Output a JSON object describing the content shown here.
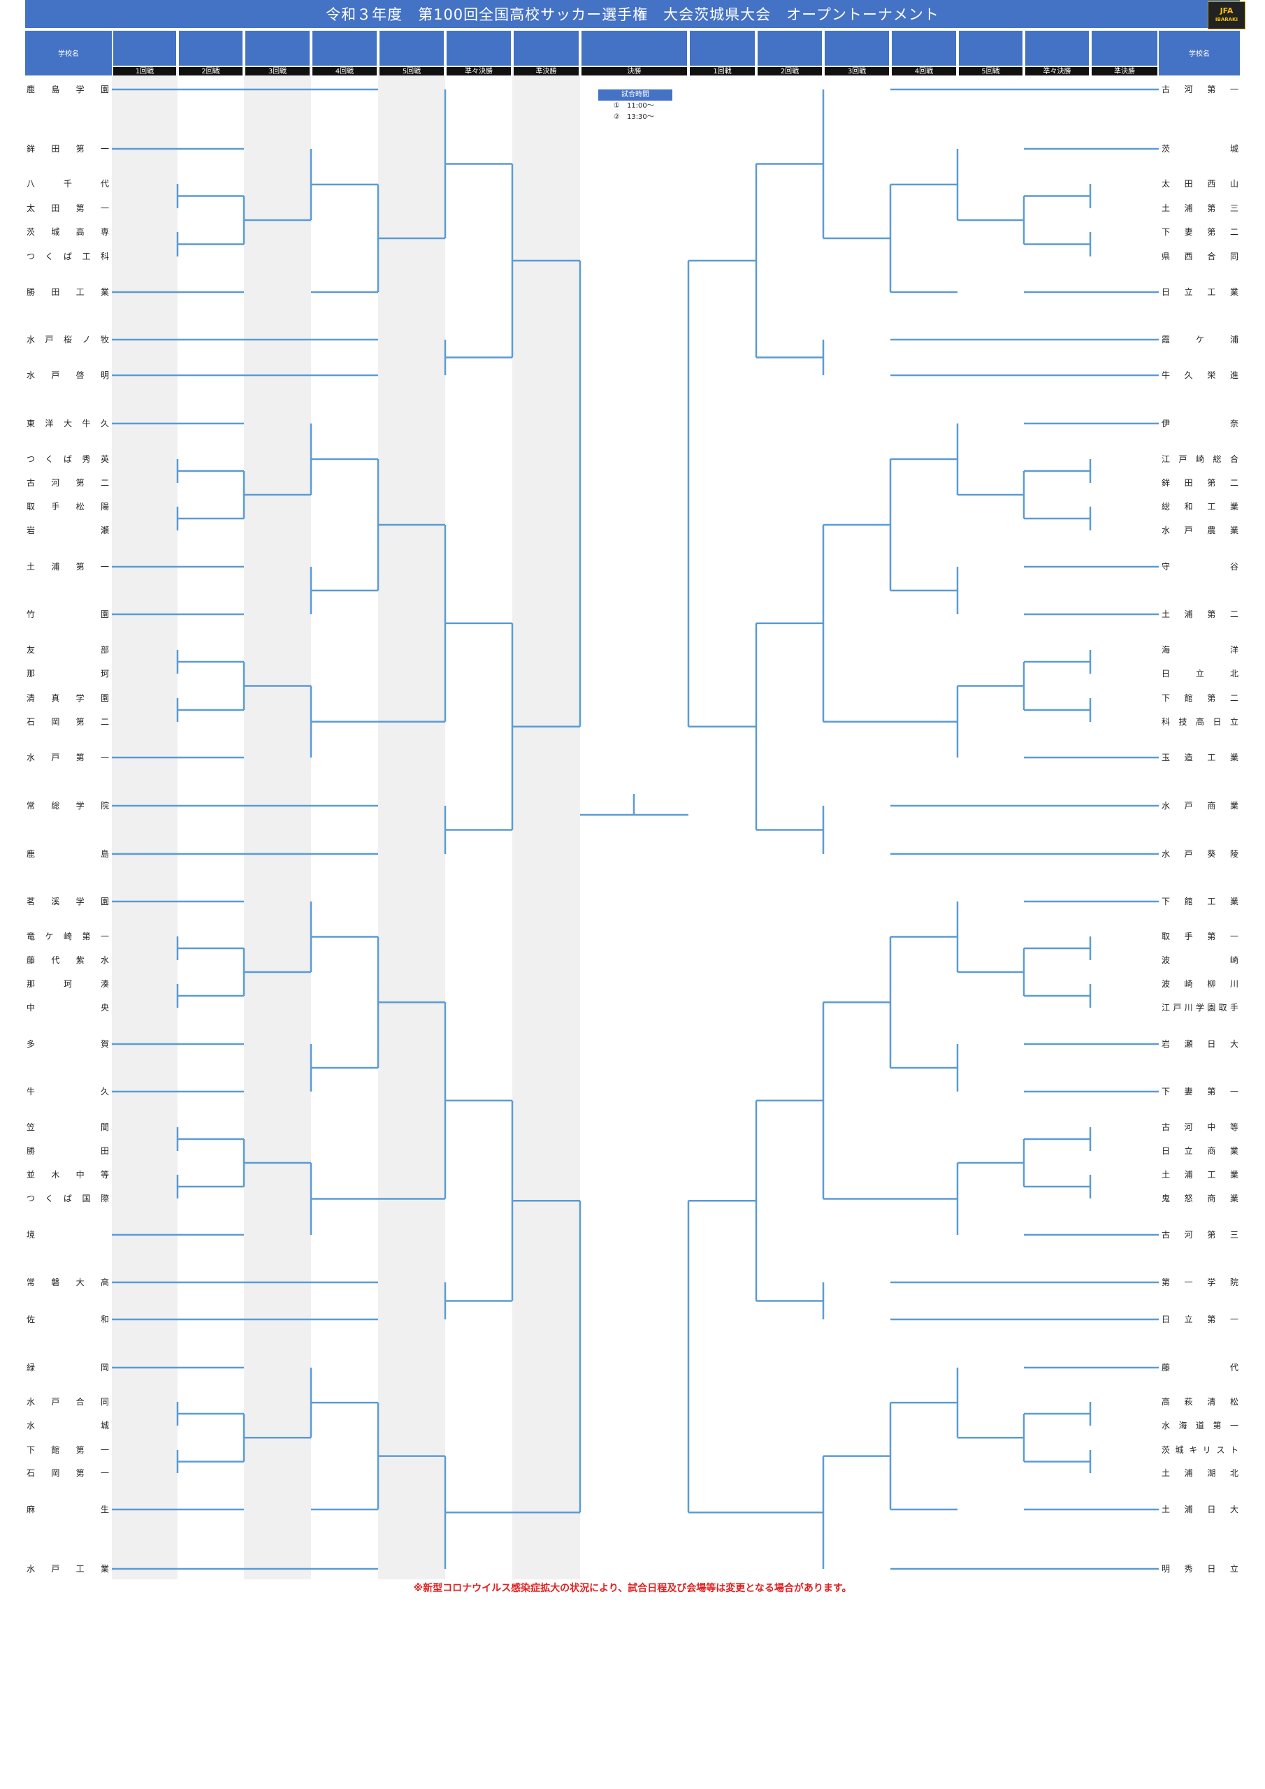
{
  "title": "令和３年度　第100回全国高校サッカー選手権　大会茨城県大会　オープントーナメント",
  "logo": {
    "text": "JFA",
    "sub": "IBARAKI"
  },
  "header": {
    "school_label": "学校名",
    "rounds_left": [
      "1回戦",
      "2回戦",
      "3回戦",
      "4回戦",
      "5回戦",
      "準々決勝",
      "準決勝"
    ],
    "final": "決勝",
    "rounds_right": [
      "準決勝",
      "準々決勝",
      "5回戦",
      "4回戦",
      "3回戦",
      "2回戦",
      "1回戦"
    ]
  },
  "match_times": {
    "label": "試合時間",
    "times": [
      "①　11:00～",
      "②　13:30～"
    ]
  },
  "colors": {
    "header": "#4472c4",
    "line": "#5b9bd5",
    "shade": "#f0f0f0",
    "note": "#e02020"
  },
  "left_schools": [
    "鹿島学園",
    "鉾田第一",
    "八千代",
    "太田第一",
    "茨城高専",
    "つくば工科",
    "勝田工業",
    "水戸桜ノ牧",
    "水戸啓明",
    "東洋大牛久",
    "つくば秀英",
    "古河第二",
    "取手松陽",
    "岩瀬",
    "土浦第一",
    "竹園",
    "友部",
    "那珂",
    "清真学園",
    "石岡第二",
    "水戸第一",
    "常総学院",
    "鹿島",
    "茗溪学園",
    "竜ケ崎第一",
    "藤代紫水",
    "那珂湊",
    "中央",
    "多賀",
    "牛久",
    "笠間",
    "勝田",
    "並木中等",
    "つくば国際",
    "境",
    "常磐大高",
    "佐和",
    "緑岡",
    "水戸合同",
    "水城",
    "下館第一",
    "石岡第一",
    "麻生",
    "水戸工業"
  ],
  "right_schools": [
    "古河第一",
    "茨城",
    "太田西山",
    "土浦第三",
    "下妻第二",
    "県西合同",
    "日立工業",
    "霞ケ浦",
    "牛久栄進",
    "伊奈",
    "江戸崎総合",
    "鉾田第二",
    "総和工業",
    "水戸農業",
    "守谷",
    "土浦第二",
    "海洋",
    "日立北",
    "下館第二",
    "科技高日立",
    "玉造工業",
    "水戸商業",
    "水戸葵陵",
    "下館工業",
    "取手第一",
    "波崎",
    "波崎柳川",
    "江戸川学園取手",
    "岩瀬日大",
    "下妻第一",
    "古河中等",
    "日立商業",
    "土浦工業",
    "鬼怒商業",
    "古河第三",
    "第一学院",
    "日立第一",
    "藤代",
    "高萩清松",
    "水海道第一",
    "茨城キリスト",
    "土浦湖北",
    "土浦日大",
    "明秀日立"
  ],
  "note": "※新型コロナウイルス感染症拡大の状況により、試合日程及び会場等は変更となる場合があります。"
}
